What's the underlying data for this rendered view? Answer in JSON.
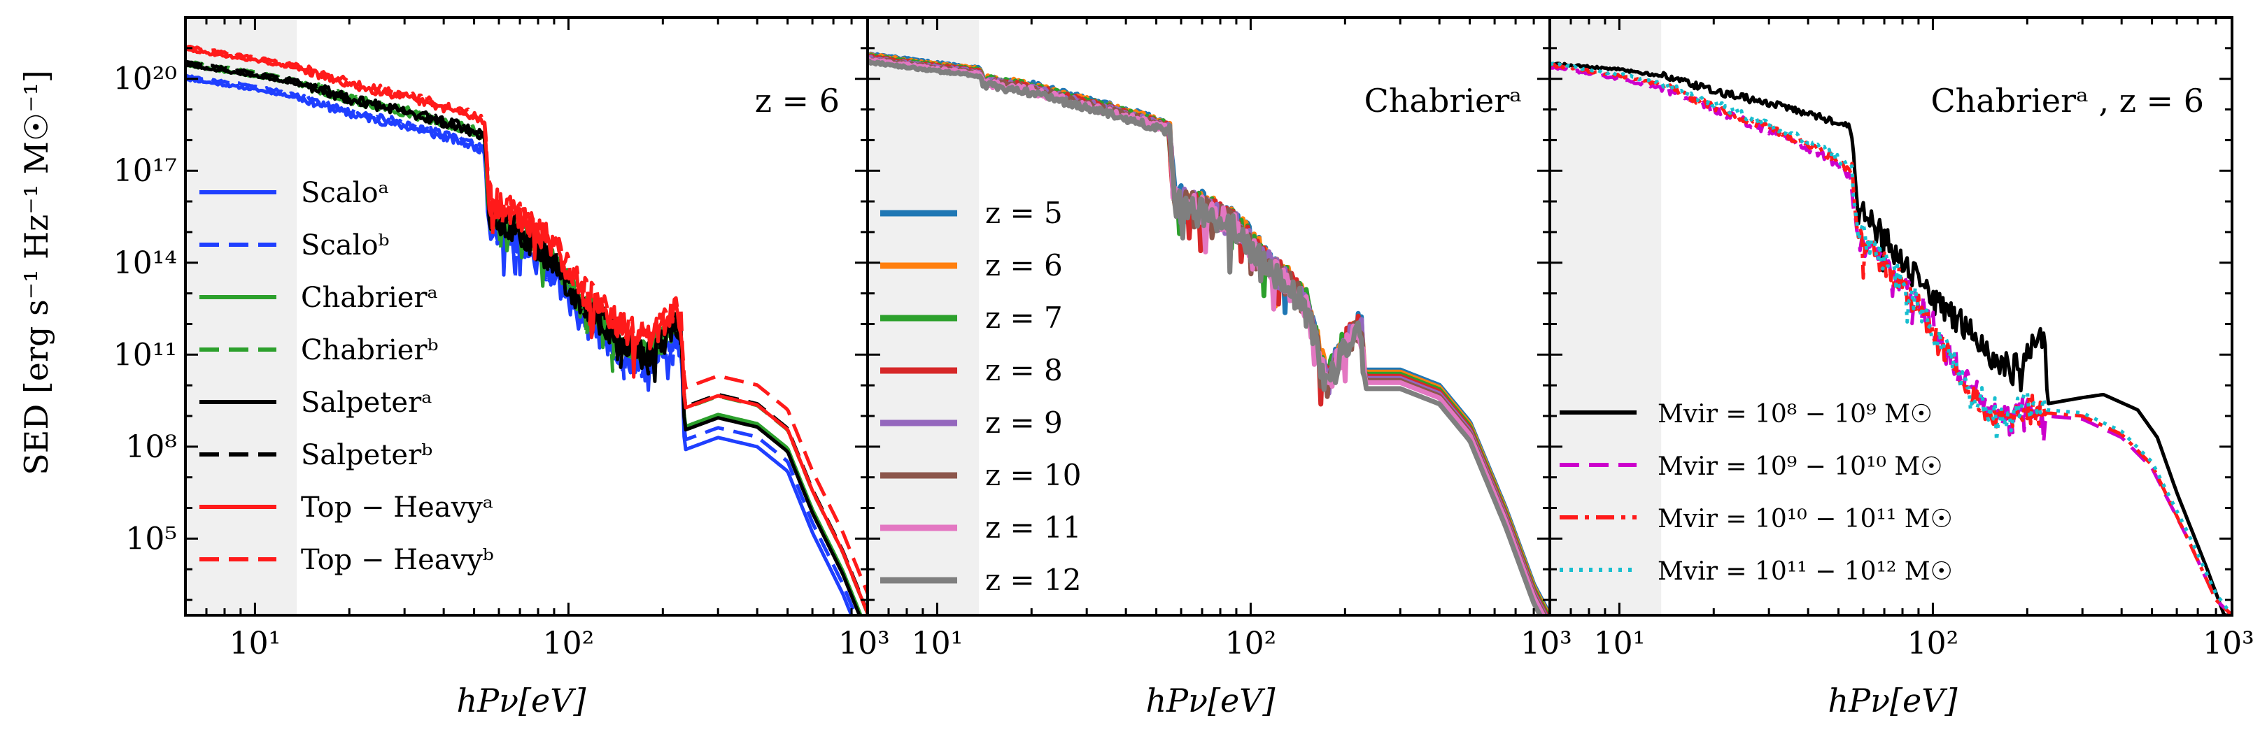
{
  "figure": {
    "ylabel": "SED [erg s⁻¹ Hz⁻¹ M☉⁻¹]",
    "xlabel": "hPν[eV]"
  },
  "colors": {
    "blue": "#1f3fff",
    "green": "#2ca02c",
    "black": "#000000",
    "red": "#ff1a1a",
    "z5": "#1f77b4",
    "z6": "#ff7f0e",
    "z7": "#2ca02c",
    "z8": "#d62728",
    "z9": "#9467bd",
    "z10": "#8c564b",
    "z11": "#e377c2",
    "z12": "#7f7f7f",
    "magenta": "#cc00cc",
    "cyan": "#17becf",
    "shade": "#f0f0f0"
  },
  "chart_data": [
    {
      "type": "line",
      "panel": 1,
      "annotation": "z = 6",
      "xscale": "log",
      "yscale": "log",
      "xlim_eV": [
        6,
        900
      ],
      "ylim_log10": [
        2.5,
        22
      ],
      "shaded_region_eV": [
        6,
        13.6
      ],
      "x_ticks": [
        "10¹",
        "10²",
        "10³"
      ],
      "y_ticks": [
        "10⁵",
        "10⁸",
        "10¹¹",
        "10¹⁴",
        "10¹⁷",
        "10²⁰"
      ],
      "legend": "left",
      "series": [
        {
          "label": "Scaloᵃ",
          "color": "blue",
          "dash": "solid",
          "offset_log10": -0.45,
          "xray_offset_log10": -2.0
        },
        {
          "label": "Scaloᵇ",
          "color": "blue",
          "dash": "dashed",
          "offset_log10": -0.35,
          "xray_offset_log10": -1.5
        },
        {
          "label": "Chabrierᵃ",
          "color": "green",
          "dash": "solid",
          "offset_log10": 0.0,
          "xray_offset_log10": -1.0
        },
        {
          "label": "Chabrierᵇ",
          "color": "green",
          "dash": "dashed",
          "offset_log10": 0.1,
          "xray_offset_log10": 0.0
        },
        {
          "label": "Salpeterᵃ",
          "color": "black",
          "dash": "solid",
          "offset_log10": 0.0,
          "xray_offset_log10": -1.2
        },
        {
          "label": "Salpeterᵇ",
          "color": "black",
          "dash": "dashed",
          "offset_log10": 0.1,
          "xray_offset_log10": 0.1
        },
        {
          "label": "Top − Heavyᵃ",
          "color": "red",
          "dash": "solid",
          "offset_log10": 0.5,
          "xray_offset_log10": -0.3
        },
        {
          "label": "Top − Heavyᵇ",
          "color": "red",
          "dash": "dashed",
          "offset_log10": 0.6,
          "xray_offset_log10": 0.8
        }
      ],
      "base_sed_log10": [
        [
          6,
          20.45
        ],
        [
          10,
          20.1
        ],
        [
          13.6,
          19.85
        ],
        [
          20,
          19.3
        ],
        [
          30,
          18.9
        ],
        [
          45,
          18.4
        ],
        [
          54,
          18.1
        ],
        [
          56,
          15.5
        ],
        [
          70,
          15.0
        ],
        [
          90,
          14.0
        ],
        [
          110,
          12.6
        ],
        [
          130,
          12.0
        ],
        [
          150,
          11.3
        ],
        [
          180,
          11.0
        ],
        [
          220,
          12.0
        ],
        [
          228,
          11.7
        ],
        [
          235,
          9.2
        ],
        [
          300,
          9.6
        ],
        [
          400,
          9.3
        ],
        [
          500,
          8.5
        ],
        [
          600,
          6.5
        ],
        [
          750,
          4.5
        ],
        [
          900,
          2.5
        ]
      ]
    },
    {
      "type": "line",
      "panel": 2,
      "annotation": "Chabrierᵃ",
      "xscale": "log",
      "yscale": "log",
      "xlim_eV": [
        6,
        900
      ],
      "ylim_log10": [
        2.5,
        22
      ],
      "shaded_region_eV": [
        6,
        13.6
      ],
      "x_ticks": [
        "10¹",
        "10²",
        "10³"
      ],
      "legend": "left",
      "series": [
        {
          "label": "z = 5",
          "color": "z5",
          "offset_log10": 0.0,
          "xray_offset_log10": 0.0
        },
        {
          "label": "z = 6",
          "color": "z6",
          "offset_log10": -0.03,
          "xray_offset_log10": -0.1
        },
        {
          "label": "z = 7",
          "color": "z7",
          "offset_log10": -0.06,
          "xray_offset_log10": -0.2
        },
        {
          "label": "z = 8",
          "color": "z8",
          "offset_log10": -0.09,
          "xray_offset_log10": -0.3
        },
        {
          "label": "z = 9",
          "color": "z9",
          "offset_log10": -0.12,
          "xray_offset_log10": -0.4
        },
        {
          "label": "z = 10",
          "color": "z10",
          "offset_log10": -0.15,
          "xray_offset_log10": -0.5
        },
        {
          "label": "z = 11",
          "color": "z11",
          "offset_log10": -0.18,
          "xray_offset_log10": -0.6
        },
        {
          "label": "z = 12",
          "color": "z12",
          "offset_log10": -0.25,
          "xray_offset_log10": -0.9
        }
      ],
      "base_sed_log10": [
        [
          6,
          20.8
        ],
        [
          10,
          20.5
        ],
        [
          13.6,
          20.35
        ],
        [
          14,
          20.05
        ],
        [
          20,
          19.8
        ],
        [
          30,
          19.3
        ],
        [
          45,
          18.8
        ],
        [
          55,
          18.5
        ],
        [
          57,
          16.2
        ],
        [
          70,
          15.9
        ],
        [
          90,
          15.3
        ],
        [
          110,
          14.2
        ],
        [
          130,
          13.5
        ],
        [
          150,
          12.8
        ],
        [
          175,
          10.2
        ],
        [
          200,
          11.5
        ],
        [
          225,
          12.0
        ],
        [
          230,
          10.5
        ],
        [
          300,
          10.5
        ],
        [
          400,
          10.0
        ],
        [
          500,
          8.8
        ],
        [
          650,
          6.0
        ],
        [
          800,
          3.5
        ],
        [
          900,
          2.5
        ]
      ]
    },
    {
      "type": "line",
      "panel": 3,
      "annotation": "Chabrierᵃ , z = 6",
      "xscale": "log",
      "yscale": "log",
      "xlim_eV": [
        6,
        900
      ],
      "ylim_log10": [
        2.5,
        22
      ],
      "shaded_region_eV": [
        6,
        13.6
      ],
      "x_ticks": [
        "10¹",
        "10²",
        "10³"
      ],
      "legend": "bottom-left",
      "series": [
        {
          "label": "Mvir = 10⁸ − 10⁹ M☉",
          "color": "black",
          "dash": "solid",
          "sed_log10": [
            [
              6,
              20.5
            ],
            [
              10,
              20.3
            ],
            [
              13.6,
              20.1
            ],
            [
              20,
              19.6
            ],
            [
              30,
              19.2
            ],
            [
              45,
              18.7
            ],
            [
              55,
              18.4
            ],
            [
              57,
              15.8
            ],
            [
              70,
              14.8
            ],
            [
              90,
              13.5
            ],
            [
              110,
              12.5
            ],
            [
              130,
              11.8
            ],
            [
              150,
              11.0
            ],
            [
              180,
              10.5
            ],
            [
              220,
              11.5
            ],
            [
              228,
              11.3
            ],
            [
              232,
              9.4
            ],
            [
              300,
              9.6
            ],
            [
              350,
              9.7
            ],
            [
              450,
              9.2
            ],
            [
              520,
              8.3
            ],
            [
              600,
              6.5
            ],
            [
              750,
              4.0
            ],
            [
              850,
              2.5
            ]
          ]
        },
        {
          "label": "Mvir = 10⁹ − 10¹⁰ M☉",
          "color": "magenta",
          "dash": "dashed",
          "sed_log10": [
            [
              6,
              20.4
            ],
            [
              10,
              20.0
            ],
            [
              13.6,
              19.7
            ],
            [
              20,
              19.0
            ],
            [
              30,
              18.3
            ],
            [
              45,
              17.5
            ],
            [
              55,
              16.8
            ],
            [
              57,
              14.8
            ],
            [
              70,
              14.0
            ],
            [
              90,
              12.8
            ],
            [
              110,
              11.2
            ],
            [
              130,
              10.0
            ],
            [
              150,
              9.3
            ],
            [
              175,
              8.8
            ],
            [
              200,
              9.3
            ],
            [
              230,
              9.0
            ],
            [
              300,
              8.9
            ],
            [
              400,
              8.3
            ],
            [
              500,
              7.3
            ],
            [
              650,
              5.0
            ],
            [
              800,
              3.0
            ],
            [
              900,
              2.5
            ]
          ]
        },
        {
          "label": "Mvir = 10¹⁰ − 10¹¹ M☉",
          "color": "red",
          "dash": "dashdot",
          "sed_log10": [
            [
              6,
              20.45
            ],
            [
              10,
              20.1
            ],
            [
              13.6,
              19.8
            ],
            [
              20,
              19.1
            ],
            [
              30,
              18.4
            ],
            [
              45,
              17.6
            ],
            [
              55,
              17.0
            ],
            [
              57,
              15.0
            ],
            [
              70,
              14.0
            ],
            [
              90,
              12.6
            ],
            [
              110,
              11.0
            ],
            [
              130,
              9.8
            ],
            [
              150,
              9.2
            ],
            [
              175,
              8.8
            ],
            [
              200,
              9.3
            ],
            [
              230,
              9.1
            ],
            [
              300,
              9.0
            ],
            [
              400,
              8.4
            ],
            [
              500,
              7.4
            ],
            [
              650,
              5.0
            ],
            [
              800,
              3.0
            ],
            [
              900,
              2.5
            ]
          ]
        },
        {
          "label": "Mvir = 10¹¹ − 10¹² M☉",
          "color": "cyan",
          "dash": "dotted",
          "sed_log10": [
            [
              6,
              20.5
            ],
            [
              10,
              20.15
            ],
            [
              13.6,
              19.85
            ],
            [
              20,
              19.2
            ],
            [
              30,
              18.5
            ],
            [
              45,
              17.7
            ],
            [
              55,
              17.1
            ],
            [
              57,
              15.2
            ],
            [
              70,
              14.1
            ],
            [
              90,
              12.7
            ],
            [
              110,
              11.1
            ],
            [
              130,
              9.9
            ],
            [
              150,
              9.3
            ],
            [
              175,
              8.9
            ],
            [
              200,
              9.4
            ],
            [
              230,
              9.2
            ],
            [
              300,
              9.1
            ],
            [
              400,
              8.5
            ],
            [
              500,
              7.5
            ],
            [
              650,
              5.2
            ],
            [
              800,
              3.2
            ],
            [
              900,
              2.5
            ]
          ]
        }
      ]
    }
  ]
}
